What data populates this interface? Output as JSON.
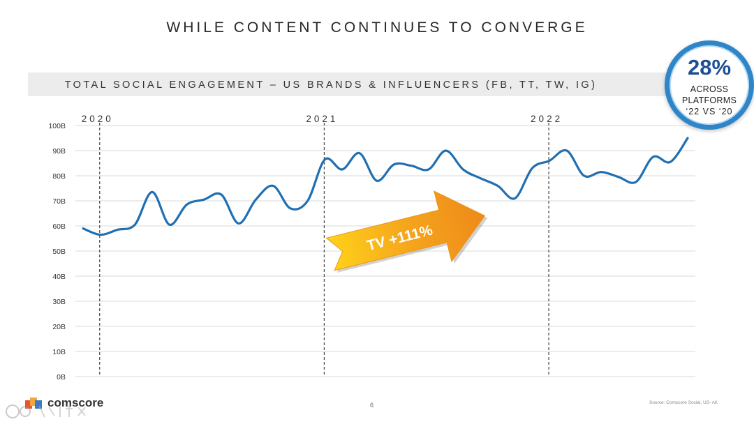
{
  "slide": {
    "title": "WHILE CONTENT CONTINUES TO CONVERGE",
    "page_number": "6",
    "source": "Source: Comscore Social, US- All.",
    "logo_text": "comscore"
  },
  "badge": {
    "percent": "28%",
    "line1": "ACROSS",
    "line2": "PLATFORMS",
    "line3": "‘22 VS ‘20"
  },
  "chart_data": {
    "type": "line",
    "title": "TOTAL SOCIAL ENGAGEMENT – US BRANDS & INFLUENCERS (FB, TT, TW, IG)",
    "xlabel": "",
    "ylabel": "",
    "ylim": [
      0,
      100
    ],
    "grid": true,
    "y_ticks": [
      "0B",
      "10B",
      "20B",
      "30B",
      "40B",
      "50B",
      "60B",
      "70B",
      "80B",
      "90B",
      "100B"
    ],
    "year_markers": [
      {
        "label": "2020",
        "index": 1
      },
      {
        "label": "2021",
        "index": 14
      },
      {
        "label": "2022",
        "index": 27
      }
    ],
    "series": [
      {
        "color": "#1f6fb2",
        "values": [
          59,
          56.5,
          58.5,
          60.5,
          73.5,
          60.5,
          68.5,
          70.5,
          72.5,
          61,
          70.5,
          76,
          67,
          70,
          86.5,
          82.5,
          89,
          78,
          84.5,
          84,
          82.5,
          90,
          82.5,
          79,
          76,
          71,
          83,
          86,
          90,
          80,
          81.5,
          79.5,
          77.5,
          87.5,
          85.5,
          95
        ]
      }
    ],
    "annotation": {
      "label": "TV +111%",
      "colors": [
        "#ffd21a",
        "#f5a51c",
        "#ee8a1a"
      ]
    }
  }
}
